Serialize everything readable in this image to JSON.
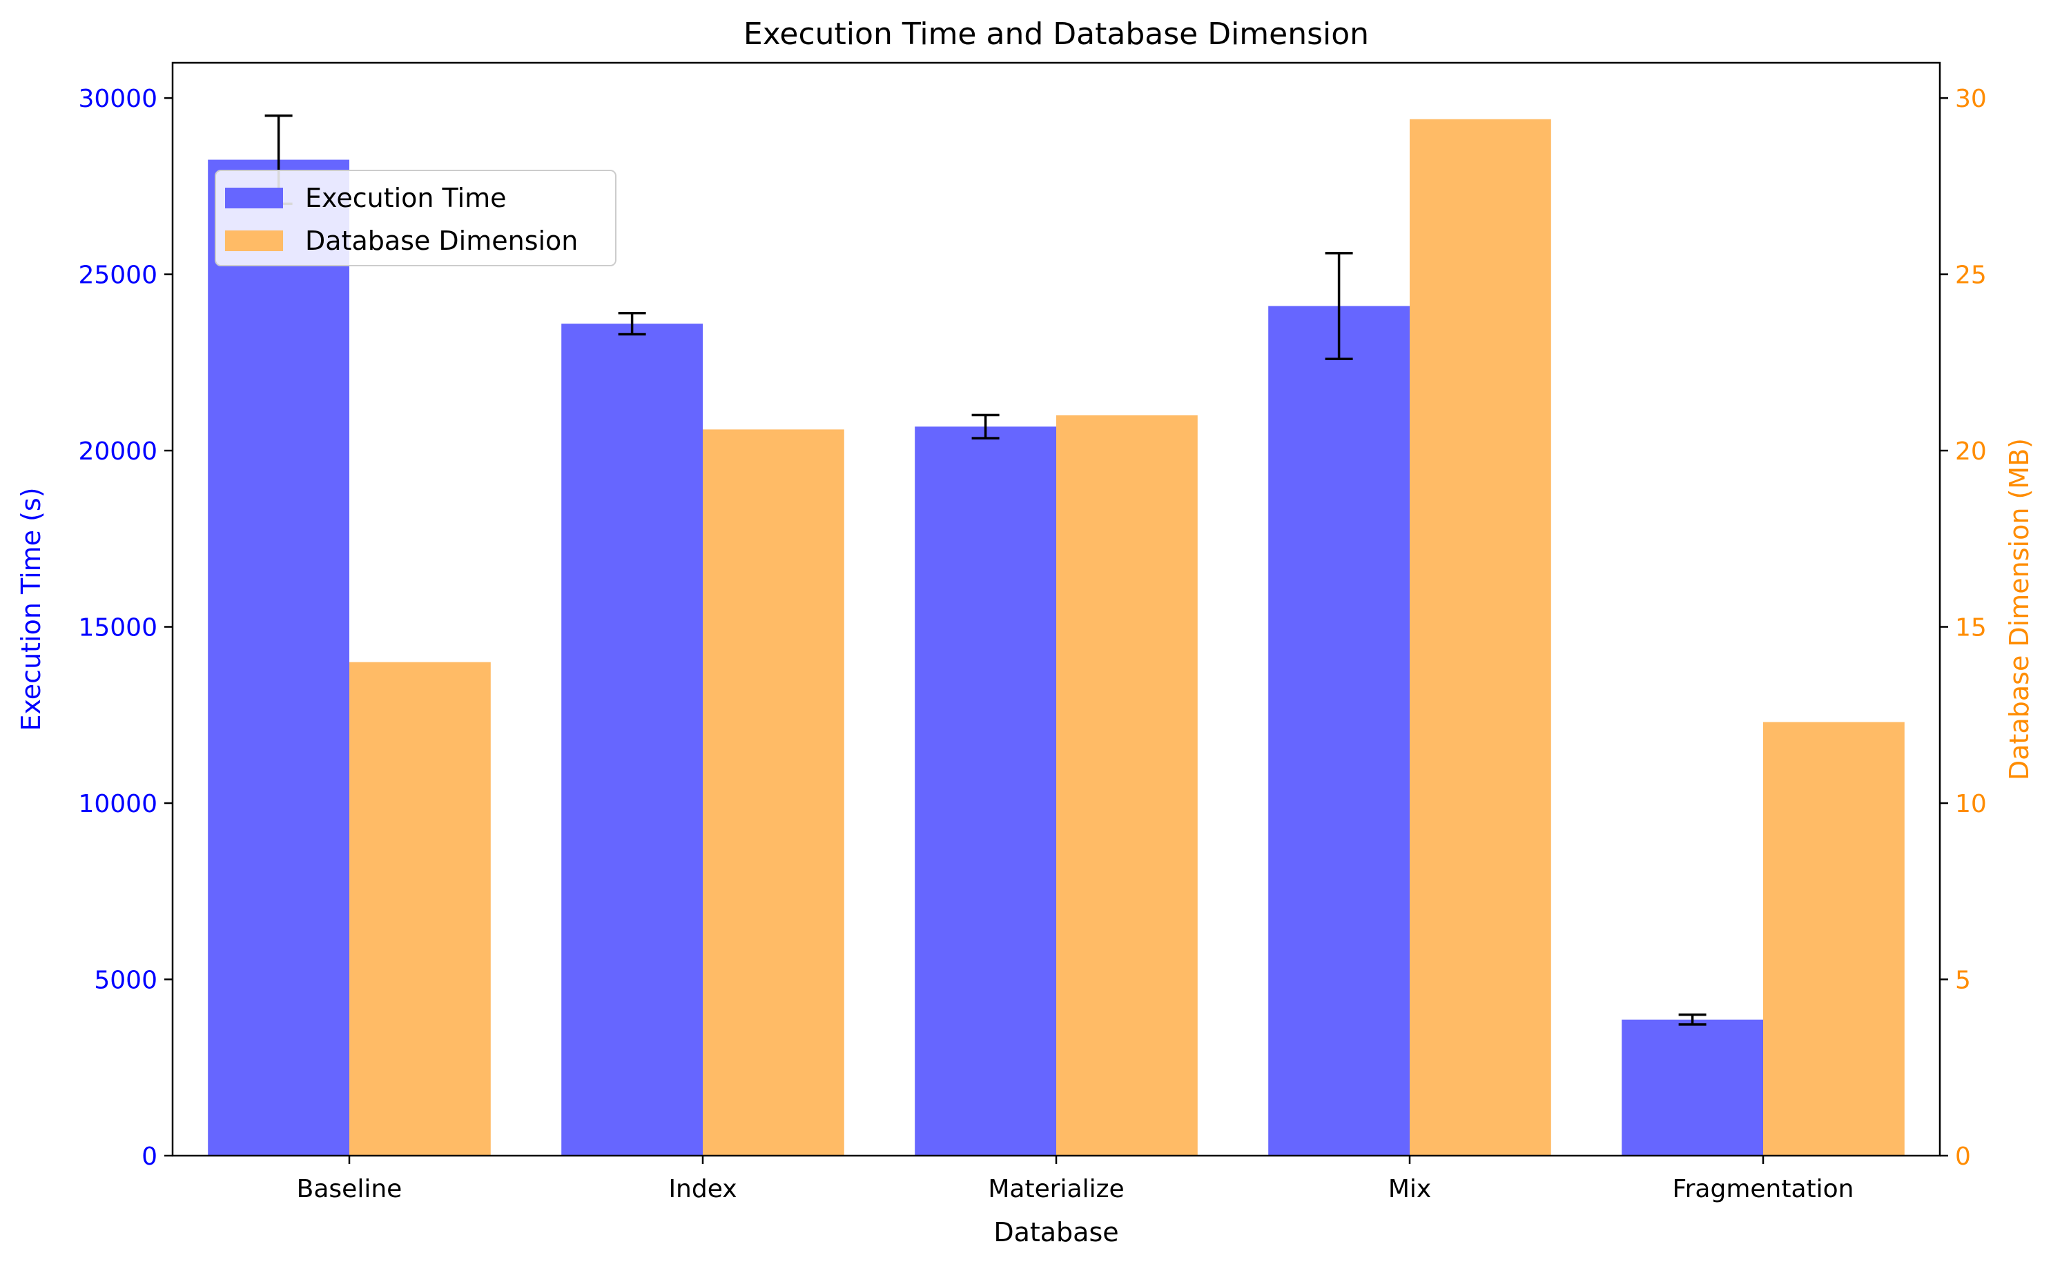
{
  "chart_data": {
    "type": "bar",
    "title": "Execution Time and Database Dimension",
    "xlabel": "Database",
    "categories": [
      "Baseline",
      "Index",
      "Materialize",
      "Mix",
      "Fragmentation"
    ],
    "y_left": {
      "label": "Execution Time (s)",
      "lim": [
        0,
        31000
      ],
      "ticks": [
        0,
        5000,
        10000,
        15000,
        20000,
        25000,
        30000
      ],
      "color": "#0000ff"
    },
    "y_right": {
      "label": "Database Dimension (MB)",
      "lim": [
        0,
        31
      ],
      "ticks": [
        0,
        5,
        10,
        15,
        20,
        25,
        30
      ],
      "color": "#ff8c00"
    },
    "series": [
      {
        "name": "Execution Time",
        "axis": "left",
        "color": "#6666ff",
        "values": [
          28250,
          23600,
          20680,
          24100,
          3860
        ],
        "errors": [
          1250,
          300,
          330,
          1500,
          140
        ]
      },
      {
        "name": "Database Dimension",
        "axis": "right",
        "color": "#ffbb66",
        "values": [
          14.0,
          20.6,
          21.0,
          29.4,
          12.3
        ]
      }
    ],
    "legend": "upper-left",
    "grid": false
  }
}
